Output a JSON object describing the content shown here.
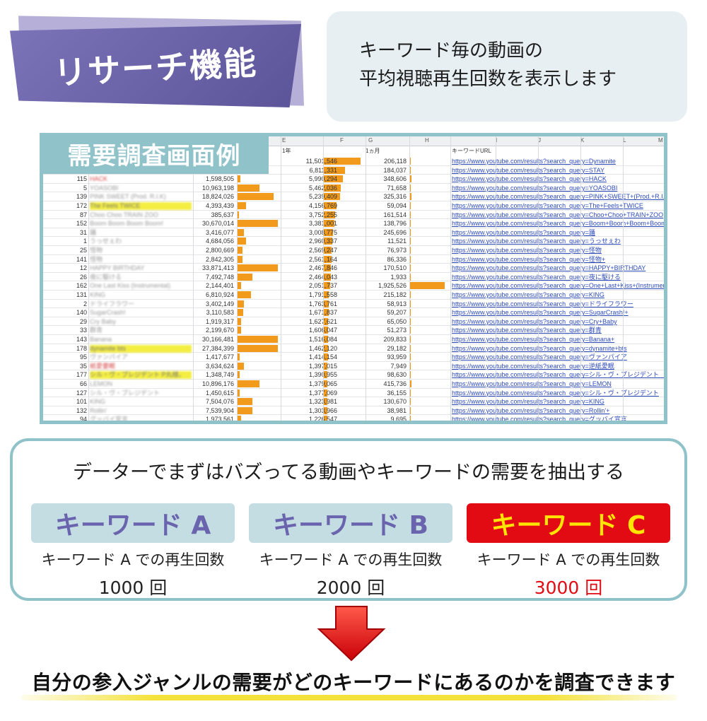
{
  "banner": {
    "title": "リサーチ機能"
  },
  "intro": {
    "line1": "キーワード毎の動画の",
    "line2": "平均視聴再生回数を表示します"
  },
  "sheet": {
    "label": "需要調査画面例",
    "col_letters": [
      "E",
      "F",
      "G",
      "H",
      "I",
      "J",
      "K",
      "L",
      "M"
    ],
    "header_1year": "1年",
    "header_1month": "1ヵ月",
    "header_url": "キーワードURL",
    "rows": [
      {
        "num": "",
        "name": "",
        "v1": "",
        "v2": "11,501,546",
        "b2": 0.95,
        "v3": "206,118",
        "b3": 0.02,
        "url": "https://www.youtube.com/results?search_query=Dynamite",
        "hl": false
      },
      {
        "num": "",
        "name": "",
        "v1": "",
        "v2": "6,811,331",
        "b2": 0.56,
        "v3": "184,037",
        "b3": 0.02,
        "url": "https://www.youtube.com/results?search_query=STAY",
        "hl": false
      },
      {
        "num": "115",
        "name": "HACK",
        "v1": "1,598,505",
        "b1": 0.08,
        "v2": "5,990,294",
        "b2": 0.5,
        "v3": "348,606",
        "b3": 0.05,
        "url": "https://www.youtube.com/results?search_query=HACK",
        "hl": false,
        "red": true
      },
      {
        "num": "5",
        "name": "YOASOBI",
        "v1": "10,963,198",
        "b1": 0.55,
        "v2": "5,462,036",
        "b2": 0.45,
        "v3": "71,658",
        "b3": 0.01,
        "url": "https://www.youtube.com/results?search_query=YOASOBI",
        "hl": false
      },
      {
        "num": "139",
        "name": "PINK SWEET (Prod. R.I.K)",
        "v1": "18,824,026",
        "b1": 0.9,
        "v2": "5,239,409",
        "b2": 0.43,
        "v3": "325,316",
        "b3": 0.05,
        "url": "https://www.youtube.com/results?search_query=PINK+SWEET+(Prod.+R.I.K)",
        "hl": false
      },
      {
        "num": "172",
        "name": "The Feels TWICE",
        "v1": "4,393,439",
        "b1": 0.22,
        "v2": "4,156,769",
        "b2": 0.34,
        "v3": "59,094",
        "b3": 0.01,
        "url": "https://www.youtube.com/results?search_query=The+Feels+TWICE",
        "hl": true
      },
      {
        "num": "87",
        "name": "Choo Choo TRAIN ZOO",
        "v1": "385,637",
        "b1": 0.05,
        "v2": "3,752,255",
        "b2": 0.31,
        "v3": "161,514",
        "b3": 0.02,
        "url": "https://www.youtube.com/results?search_query=Choo+Choo+TRAIN+ZOO",
        "hl": false
      },
      {
        "num": "152",
        "name": "Boom Boom Boom Boom!",
        "v1": "30,670,014",
        "b1": 1.0,
        "v2": "3,381,001",
        "b2": 0.28,
        "v3": "138,796",
        "b3": 0.02,
        "url": "https://www.youtube.com/results?search_query=Boom+Boom+Boom+Boom!+",
        "hl": false
      },
      {
        "num": "31",
        "name": "踊",
        "v1": "3,416,077",
        "b1": 0.17,
        "v2": "3,008,775",
        "b2": 0.25,
        "v3": "245,696",
        "b3": 0.04,
        "url": "https://www.youtube.com/results?search_query=踊",
        "hl": false
      },
      {
        "num": "1",
        "name": "うっせぇわ",
        "v1": "4,684,056",
        "b1": 0.23,
        "v2": "2,960,337",
        "b2": 0.24,
        "v3": "11,521",
        "b3": 0.0,
        "url": "https://www.youtube.com/results?search_query=うっせぇわ",
        "hl": false
      },
      {
        "num": "25",
        "name": "怪物",
        "v1": "2,800,669",
        "b1": 0.14,
        "v2": "2,569,247",
        "b2": 0.21,
        "v3": "76,973",
        "b3": 0.01,
        "url": "https://www.youtube.com/results?search_query=怪物",
        "hl": false
      },
      {
        "num": "141",
        "name": "怪物",
        "v1": "2,842,305",
        "b1": 0.14,
        "v2": "2,561,164",
        "b2": 0.21,
        "v3": "86,336",
        "b3": 0.01,
        "url": "https://www.youtube.com/results?search_query=怪物+",
        "hl": false
      },
      {
        "num": "12",
        "name": "HAPPY BIRTHDAY",
        "v1": "33,871,413",
        "b1": 1.0,
        "v2": "2,467,846",
        "b2": 0.2,
        "v3": "170,510",
        "b3": 0.02,
        "url": "https://www.youtube.com/results?search_query=HAPPY+BIRTHDAY",
        "hl": false
      },
      {
        "num": "26",
        "name": "夜に駆ける",
        "v1": "7,492,748",
        "b1": 0.38,
        "v2": "2,464,043",
        "b2": 0.2,
        "v3": "1,933",
        "b3": 0.0,
        "url": "https://www.youtube.com/results?search_query=夜に駆ける",
        "hl": false
      },
      {
        "num": "162",
        "name": "One Last Kiss (Instrumental)",
        "v1": "2,144,401",
        "b1": 0.11,
        "v2": "2,051,737",
        "b2": 0.17,
        "v3": "1,925,526",
        "b3": 0.9,
        "url": "https://www.youtube.com/results?search_query=One+Last+Kiss+(Instrumental)",
        "hl": false
      },
      {
        "num": "131",
        "name": "KING",
        "v1": "6,810,924",
        "b1": 0.34,
        "v2": "1,791,558",
        "b2": 0.15,
        "v3": "215,182",
        "b3": 0.03,
        "url": "https://www.youtube.com/results?search_query=KING",
        "hl": false
      },
      {
        "num": "2",
        "name": "ドライフラワー",
        "v1": "3,402,149",
        "b1": 0.17,
        "v2": "1,763,761",
        "b2": 0.14,
        "v3": "58,913",
        "b3": 0.01,
        "url": "https://www.youtube.com/results?search_query=ドライフラワー",
        "hl": false
      },
      {
        "num": "140",
        "name": "SugarCrash!",
        "v1": "3,110,583",
        "b1": 0.16,
        "v2": "1,671,837",
        "b2": 0.14,
        "v3": "59,207",
        "b3": 0.01,
        "url": "https://www.youtube.com/results?search_query=SugarCrash!+",
        "hl": false
      },
      {
        "num": "29",
        "name": "Cry Baby",
        "v1": "1,919,317",
        "b1": 0.1,
        "v2": "1,627,621",
        "b2": 0.13,
        "v3": "65,050",
        "b3": 0.01,
        "url": "https://www.youtube.com/results?search_query=Cry+Baby",
        "hl": false
      },
      {
        "num": "33",
        "name": "群青",
        "v1": "2,199,670",
        "b1": 0.11,
        "v2": "1,606,047",
        "b2": 0.13,
        "v3": "51,273",
        "b3": 0.01,
        "url": "https://www.youtube.com/results?search_query=群青",
        "hl": false
      },
      {
        "num": "143",
        "name": "Banana",
        "v1": "30,166,481",
        "b1": 1.0,
        "v2": "1,516,084",
        "b2": 0.12,
        "v3": "209,833",
        "b3": 0.03,
        "url": "https://www.youtube.com/results?search_query=Banana+",
        "hl": false
      },
      {
        "num": "178",
        "name": "dynamite bts",
        "v1": "27,384,399",
        "b1": 1.0,
        "v2": "1,462,120",
        "b2": 0.12,
        "v3": "29,182",
        "b3": 0.0,
        "url": "https://www.youtube.com/results?search_query=dynamite+bts",
        "hl": true
      },
      {
        "num": "95",
        "name": "ヴァンパイア",
        "v1": "1,417,677",
        "b1": 0.07,
        "v2": "1,414,154",
        "b2": 0.12,
        "v3": "93,959",
        "b3": 0.01,
        "url": "https://www.youtube.com/results?search_query=ヴァンパイア",
        "hl": false
      },
      {
        "num": "35",
        "name": "紙愛要眠",
        "v1": "3,634,624",
        "b1": 0.18,
        "v2": "1,397,015",
        "b2": 0.11,
        "v3": "7,949",
        "b3": 0.0,
        "url": "https://www.youtube.com/results?search_query=逆紙愛眠",
        "hl": false,
        "red": true
      },
      {
        "num": "177",
        "name": "シル・ヴ・プレジデント P丸様。",
        "v1": "1,348,749",
        "b1": 0.07,
        "v2": "1,390,955",
        "b2": 0.11,
        "v3": "98,630",
        "b3": 0.01,
        "url": "https://www.youtube.com/results?search_query=シル・ヴ・プレジデント　P丸様。",
        "hl": true
      },
      {
        "num": "66",
        "name": "LEMON",
        "v1": "10,896,176",
        "b1": 0.55,
        "v2": "1,379,065",
        "b2": 0.11,
        "v3": "415,736",
        "b3": 0.06,
        "url": "https://www.youtube.com/results?search_query=LEMON",
        "hl": false
      },
      {
        "num": "127",
        "name": "シル・ヴ・プレジデント",
        "v1": "1,450,615",
        "b1": 0.07,
        "v2": "1,377,069",
        "b2": 0.11,
        "v3": "36,155",
        "b3": 0.0,
        "url": "https://www.youtube.com/results?search_query=シル・ヴ・プレジデント",
        "hl": false
      },
      {
        "num": "101",
        "name": "KING",
        "v1": "7,504,076",
        "b1": 0.38,
        "v2": "1,323,981",
        "b2": 0.11,
        "v3": "130,670",
        "b3": 0.02,
        "url": "https://www.youtube.com/results?search_query=KING",
        "hl": false
      },
      {
        "num": "132",
        "name": "Rollin'",
        "v1": "7,539,904",
        "b1": 0.38,
        "v2": "1,303,966",
        "b2": 0.1,
        "v3": "38,981",
        "b3": 0.0,
        "url": "https://www.youtube.com/results?search_query=Rollin'+",
        "hl": false
      },
      {
        "num": "94",
        "name": "グッバイ宣言",
        "v1": "1,973,561",
        "b1": 0.1,
        "v2": "1,226,547",
        "b2": 0.1,
        "v3": "9,695",
        "b3": 0.0,
        "url": "https://www.youtube.com/results?search_query=グッバイ宣言",
        "hl": false
      }
    ]
  },
  "compare": {
    "title": "データーでまずはバズってる動画やキーワードの需要を抽出する",
    "keywords": [
      {
        "label": "キーワード A",
        "desc": "キーワード A での再生回数",
        "count": "1000 回",
        "hot": false
      },
      {
        "label": "キーワード B",
        "desc": "キーワード A での再生回数",
        "count": "2000 回",
        "hot": false
      },
      {
        "label": "キーワード C",
        "desc": "キーワード A での再生回数",
        "count": "3000 回",
        "hot": true
      }
    ]
  },
  "conclusion": {
    "text": "自分の参入ジャンルの需要がどのキーワードにあるのかを調査できます"
  },
  "colors": {
    "purple": "#6a63ad",
    "teal": "#8fc3c9",
    "orange": "#f19a1c",
    "red": "#e20b13",
    "yellow": "#ffe500"
  }
}
